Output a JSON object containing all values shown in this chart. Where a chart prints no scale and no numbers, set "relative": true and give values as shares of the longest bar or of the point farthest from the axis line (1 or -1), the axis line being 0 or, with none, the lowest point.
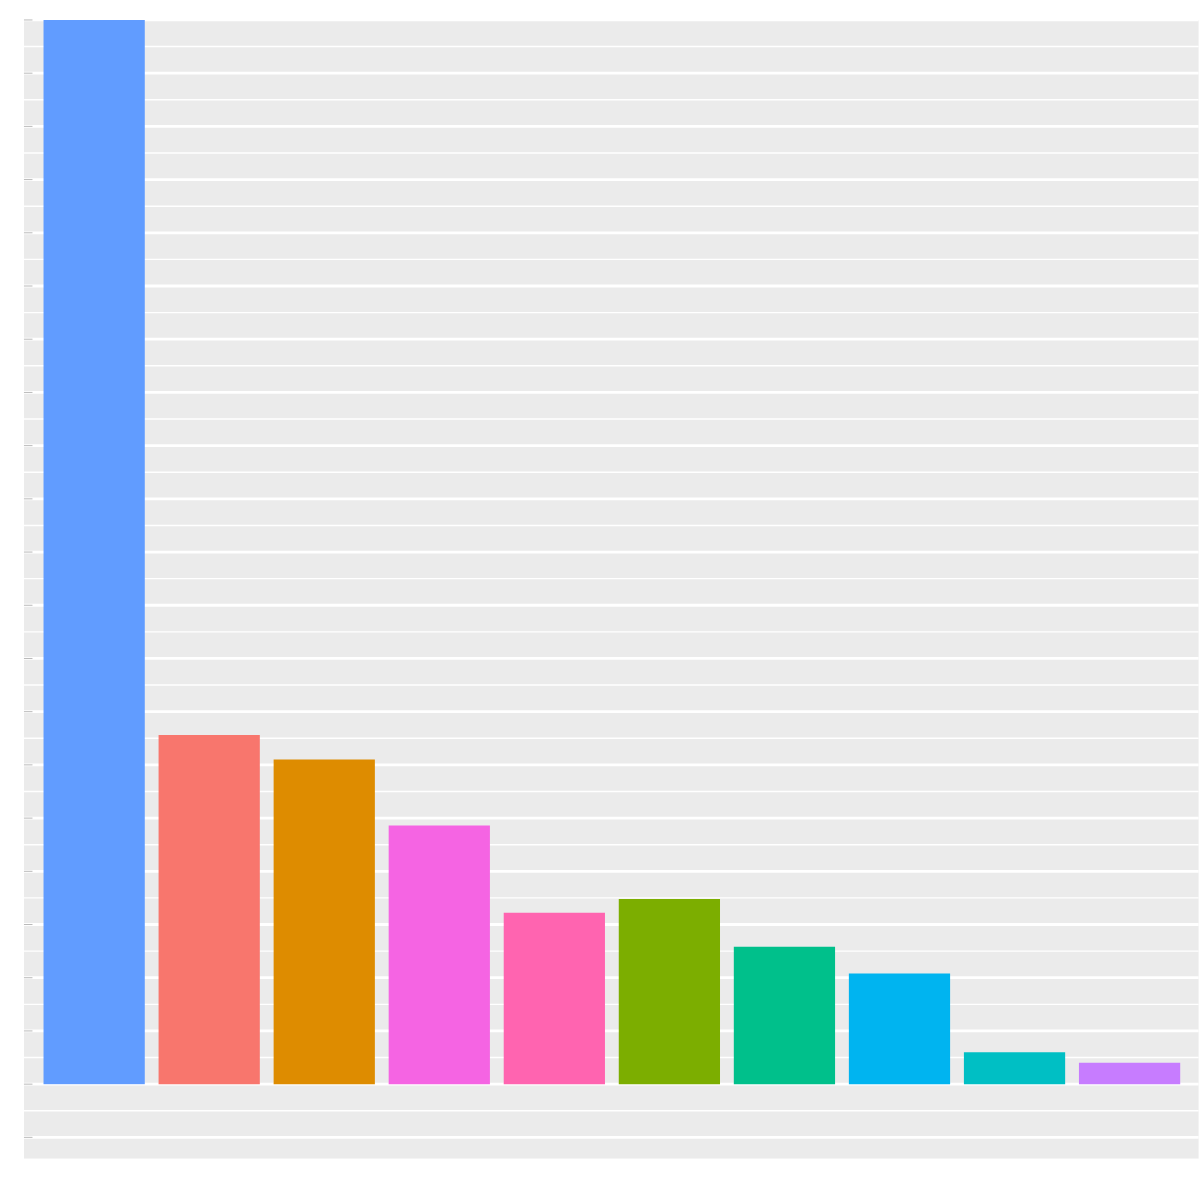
{
  "chart_data": {
    "type": "bar",
    "relative": true,
    "grid": true,
    "categories": [
      null,
      null,
      null,
      null,
      null,
      null,
      null,
      null,
      null,
      null
    ],
    "values": [
      1,
      0.328,
      0.305,
      0.243,
      0.161,
      0.174,
      0.129,
      0.104,
      0.03,
      0.02
    ],
    "colors": [
      "#619cff",
      "#f8766d",
      "#de8c00",
      "#f564e3",
      "#ff64b0",
      "#7cae00",
      "#00c08b",
      "#00b4f0",
      "#00bfc4",
      "#c77cff"
    ]
  }
}
